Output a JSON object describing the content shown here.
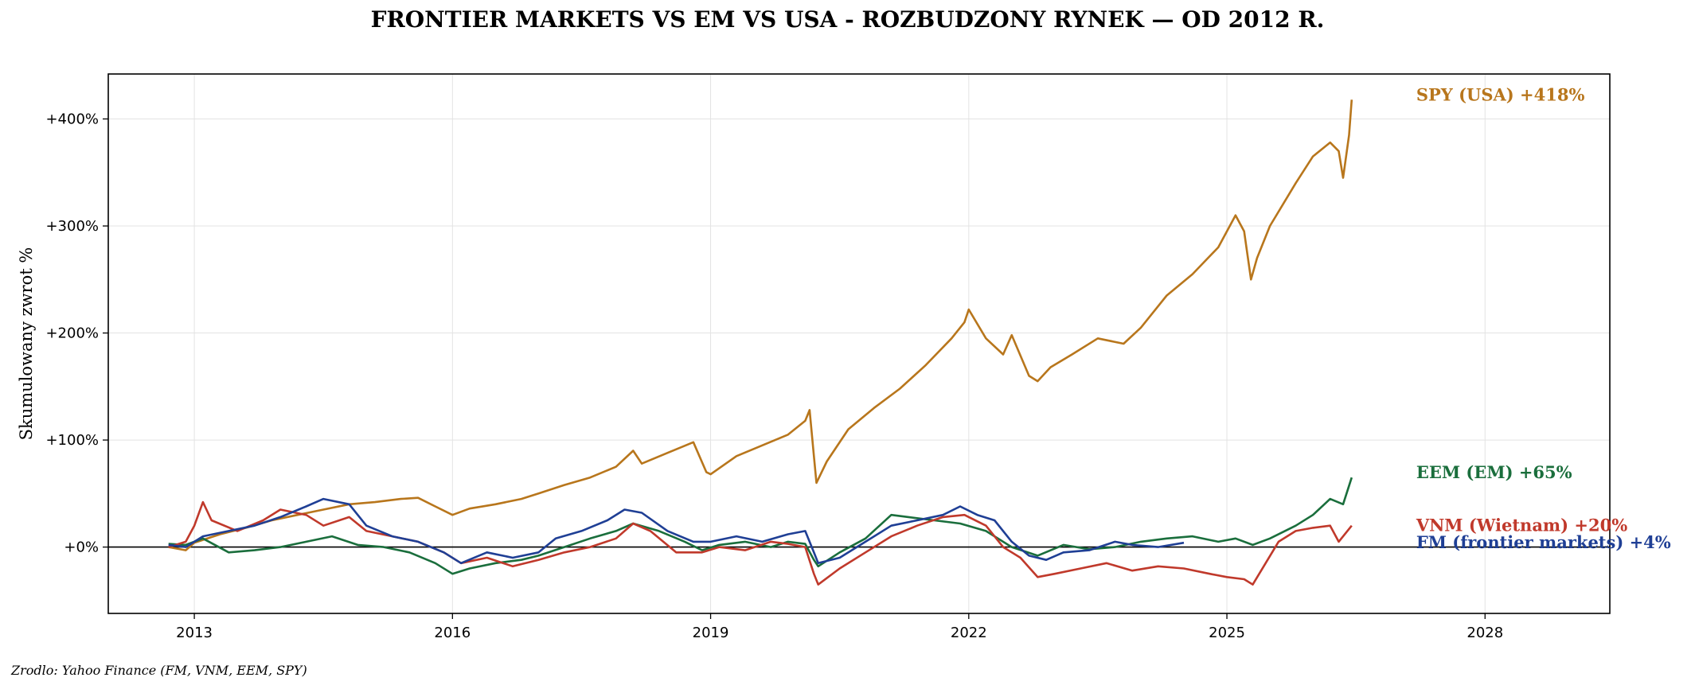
{
  "title": "FRONTIER MARKETS VS EM VS USA - ROZBUDZONY RYNEK — OD 2012 R.",
  "source": "Zrodlo: Yahoo Finance (FM, VNM, EEM, SPY)",
  "chart_data": {
    "type": "line",
    "title": "FRONTIER MARKETS VS EM VS USA - ROZBUDZONY RYNEK — OD 2012 R.",
    "xlabel": "",
    "ylabel": "Skumulowany zwrot %",
    "xlim": [
      2012.0,
      2029.45
    ],
    "ylim": [
      -62,
      442
    ],
    "x_ticks": [
      2013,
      2016,
      2019,
      2022,
      2025,
      2028
    ],
    "x_tick_labels": [
      "2013",
      "2016",
      "2019",
      "2022",
      "2025",
      "2028"
    ],
    "y_ticks": [
      0,
      100,
      200,
      300,
      400
    ],
    "y_tick_labels": [
      "+0%",
      "+100%",
      "+200%",
      "+300%",
      "+400%"
    ],
    "grid": true,
    "zero_line": true,
    "series": [
      {
        "name": "SPY (USA)",
        "label": "SPY (USA)  +418%",
        "color": "#b8761c",
        "points": [
          [
            2012.7,
            0
          ],
          [
            2012.9,
            -3
          ],
          [
            2013.0,
            4
          ],
          [
            2013.3,
            12
          ],
          [
            2013.6,
            18
          ],
          [
            2013.9,
            25
          ],
          [
            2014.2,
            30
          ],
          [
            2014.5,
            35
          ],
          [
            2014.8,
            40
          ],
          [
            2015.1,
            42
          ],
          [
            2015.4,
            45
          ],
          [
            2015.6,
            46
          ],
          [
            2015.8,
            38
          ],
          [
            2016.0,
            30
          ],
          [
            2016.2,
            36
          ],
          [
            2016.5,
            40
          ],
          [
            2016.8,
            45
          ],
          [
            2017.0,
            50
          ],
          [
            2017.3,
            58
          ],
          [
            2017.6,
            65
          ],
          [
            2017.9,
            75
          ],
          [
            2018.1,
            90
          ],
          [
            2018.2,
            78
          ],
          [
            2018.5,
            88
          ],
          [
            2018.8,
            98
          ],
          [
            2018.95,
            70
          ],
          [
            2019.0,
            68
          ],
          [
            2019.3,
            85
          ],
          [
            2019.6,
            95
          ],
          [
            2019.9,
            105
          ],
          [
            2020.1,
            118
          ],
          [
            2020.15,
            128
          ],
          [
            2020.2,
            85
          ],
          [
            2020.23,
            60
          ],
          [
            2020.35,
            80
          ],
          [
            2020.6,
            110
          ],
          [
            2020.9,
            130
          ],
          [
            2021.2,
            148
          ],
          [
            2021.5,
            170
          ],
          [
            2021.8,
            195
          ],
          [
            2021.95,
            210
          ],
          [
            2022.0,
            222
          ],
          [
            2022.2,
            195
          ],
          [
            2022.4,
            180
          ],
          [
            2022.5,
            198
          ],
          [
            2022.7,
            160
          ],
          [
            2022.8,
            155
          ],
          [
            2022.95,
            168
          ],
          [
            2023.2,
            180
          ],
          [
            2023.5,
            195
          ],
          [
            2023.8,
            190
          ],
          [
            2024.0,
            205
          ],
          [
            2024.3,
            235
          ],
          [
            2024.6,
            255
          ],
          [
            2024.9,
            280
          ],
          [
            2025.1,
            310
          ],
          [
            2025.2,
            295
          ],
          [
            2025.28,
            250
          ],
          [
            2025.35,
            270
          ],
          [
            2025.5,
            300
          ],
          [
            2025.8,
            340
          ],
          [
            2026.0,
            365
          ],
          [
            2026.2,
            378
          ],
          [
            2026.3,
            370
          ],
          [
            2026.35,
            345
          ],
          [
            2026.42,
            385
          ],
          [
            2026.45,
            418
          ]
        ]
      },
      {
        "name": "EEM (EM)",
        "label": "EEM (EM)  +65%",
        "color": "#1a6e3c",
        "points": [
          [
            2012.7,
            3
          ],
          [
            2012.9,
            2
          ],
          [
            2013.1,
            8
          ],
          [
            2013.4,
            -5
          ],
          [
            2013.7,
            -3
          ],
          [
            2014.0,
            0
          ],
          [
            2014.3,
            5
          ],
          [
            2014.6,
            10
          ],
          [
            2014.9,
            2
          ],
          [
            2015.2,
            0
          ],
          [
            2015.5,
            -5
          ],
          [
            2015.8,
            -15
          ],
          [
            2016.0,
            -25
          ],
          [
            2016.2,
            -20
          ],
          [
            2016.5,
            -15
          ],
          [
            2016.8,
            -12
          ],
          [
            2017.0,
            -8
          ],
          [
            2017.3,
            0
          ],
          [
            2017.6,
            8
          ],
          [
            2017.9,
            15
          ],
          [
            2018.1,
            22
          ],
          [
            2018.4,
            15
          ],
          [
            2018.7,
            5
          ],
          [
            2018.9,
            -3
          ],
          [
            2019.1,
            2
          ],
          [
            2019.4,
            5
          ],
          [
            2019.7,
            0
          ],
          [
            2019.9,
            5
          ],
          [
            2020.1,
            3
          ],
          [
            2020.2,
            -12
          ],
          [
            2020.25,
            -18
          ],
          [
            2020.5,
            -5
          ],
          [
            2020.8,
            8
          ],
          [
            2021.1,
            30
          ],
          [
            2021.3,
            28
          ],
          [
            2021.6,
            25
          ],
          [
            2021.9,
            22
          ],
          [
            2022.2,
            15
          ],
          [
            2022.5,
            0
          ],
          [
            2022.8,
            -8
          ],
          [
            2023.1,
            2
          ],
          [
            2023.4,
            -2
          ],
          [
            2023.7,
            0
          ],
          [
            2024.0,
            5
          ],
          [
            2024.3,
            8
          ],
          [
            2024.6,
            10
          ],
          [
            2024.9,
            5
          ],
          [
            2025.1,
            8
          ],
          [
            2025.3,
            2
          ],
          [
            2025.5,
            8
          ],
          [
            2025.8,
            20
          ],
          [
            2026.0,
            30
          ],
          [
            2026.2,
            45
          ],
          [
            2026.35,
            40
          ],
          [
            2026.45,
            65
          ]
        ]
      },
      {
        "name": "VNM (Wietnam)",
        "label": "VNM (Wietnam)  +20%",
        "color": "#c0392b",
        "points": [
          [
            2012.7,
            0
          ],
          [
            2012.9,
            5
          ],
          [
            2013.0,
            20
          ],
          [
            2013.1,
            42
          ],
          [
            2013.2,
            25
          ],
          [
            2013.5,
            15
          ],
          [
            2013.8,
            25
          ],
          [
            2014.0,
            35
          ],
          [
            2014.3,
            30
          ],
          [
            2014.5,
            20
          ],
          [
            2014.8,
            28
          ],
          [
            2015.0,
            15
          ],
          [
            2015.3,
            10
          ],
          [
            2015.6,
            5
          ],
          [
            2015.9,
            -5
          ],
          [
            2016.1,
            -15
          ],
          [
            2016.4,
            -10
          ],
          [
            2016.7,
            -18
          ],
          [
            2017.0,
            -12
          ],
          [
            2017.3,
            -5
          ],
          [
            2017.6,
            0
          ],
          [
            2017.9,
            8
          ],
          [
            2018.1,
            22
          ],
          [
            2018.3,
            15
          ],
          [
            2018.6,
            -5
          ],
          [
            2018.9,
            -5
          ],
          [
            2019.1,
            0
          ],
          [
            2019.4,
            -3
          ],
          [
            2019.7,
            5
          ],
          [
            2019.9,
            3
          ],
          [
            2020.1,
            0
          ],
          [
            2020.2,
            -25
          ],
          [
            2020.25,
            -35
          ],
          [
            2020.5,
            -20
          ],
          [
            2020.8,
            -5
          ],
          [
            2021.1,
            10
          ],
          [
            2021.4,
            20
          ],
          [
            2021.7,
            28
          ],
          [
            2021.95,
            30
          ],
          [
            2022.2,
            20
          ],
          [
            2022.4,
            0
          ],
          [
            2022.6,
            -10
          ],
          [
            2022.8,
            -28
          ],
          [
            2023.0,
            -25
          ],
          [
            2023.3,
            -20
          ],
          [
            2023.6,
            -15
          ],
          [
            2023.9,
            -22
          ],
          [
            2024.2,
            -18
          ],
          [
            2024.5,
            -20
          ],
          [
            2024.8,
            -25
          ],
          [
            2025.0,
            -28
          ],
          [
            2025.2,
            -30
          ],
          [
            2025.3,
            -35
          ],
          [
            2025.45,
            -15
          ],
          [
            2025.6,
            5
          ],
          [
            2025.8,
            15
          ],
          [
            2026.0,
            18
          ],
          [
            2026.2,
            20
          ],
          [
            2026.3,
            5
          ],
          [
            2026.45,
            20
          ]
        ]
      },
      {
        "name": "FM (frontier markets)",
        "label": "FM (frontier markets)  +4%",
        "color": "#1f3f95",
        "points": [
          [
            2012.7,
            2
          ],
          [
            2012.9,
            0
          ],
          [
            2013.1,
            10
          ],
          [
            2013.4,
            15
          ],
          [
            2013.7,
            20
          ],
          [
            2014.0,
            28
          ],
          [
            2014.3,
            38
          ],
          [
            2014.5,
            45
          ],
          [
            2014.8,
            40
          ],
          [
            2015.0,
            20
          ],
          [
            2015.3,
            10
          ],
          [
            2015.6,
            5
          ],
          [
            2015.9,
            -5
          ],
          [
            2016.1,
            -15
          ],
          [
            2016.4,
            -5
          ],
          [
            2016.7,
            -10
          ],
          [
            2017.0,
            -5
          ],
          [
            2017.2,
            8
          ],
          [
            2017.5,
            15
          ],
          [
            2017.8,
            25
          ],
          [
            2018.0,
            35
          ],
          [
            2018.2,
            32
          ],
          [
            2018.5,
            15
          ],
          [
            2018.8,
            5
          ],
          [
            2019.0,
            5
          ],
          [
            2019.3,
            10
          ],
          [
            2019.6,
            5
          ],
          [
            2019.9,
            12
          ],
          [
            2020.1,
            15
          ],
          [
            2020.2,
            -5
          ],
          [
            2020.25,
            -15
          ],
          [
            2020.5,
            -10
          ],
          [
            2020.8,
            5
          ],
          [
            2021.1,
            20
          ],
          [
            2021.4,
            25
          ],
          [
            2021.7,
            30
          ],
          [
            2021.9,
            38
          ],
          [
            2022.1,
            30
          ],
          [
            2022.3,
            25
          ],
          [
            2022.5,
            5
          ],
          [
            2022.7,
            -8
          ],
          [
            2022.9,
            -12
          ],
          [
            2023.1,
            -5
          ],
          [
            2023.4,
            -3
          ],
          [
            2023.7,
            5
          ],
          [
            2023.9,
            2
          ],
          [
            2024.2,
            0
          ],
          [
            2024.5,
            4
          ]
        ]
      }
    ]
  }
}
